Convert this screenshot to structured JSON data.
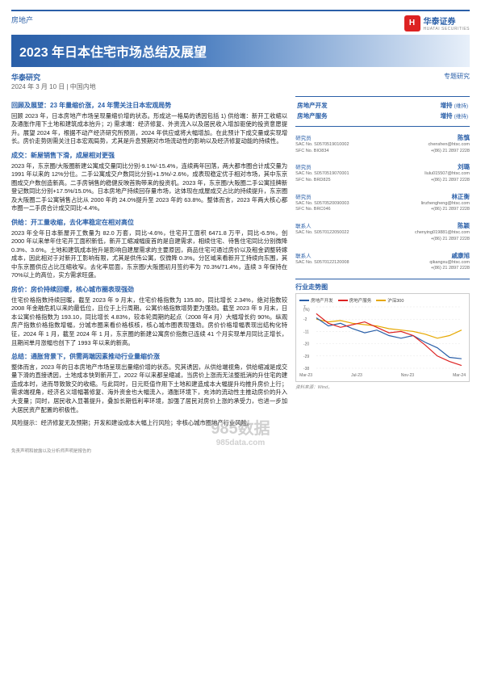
{
  "header": {
    "category": "房地产",
    "brand_cn": "华泰证券",
    "brand_en": "HUATAI SECURITIES",
    "brand_mark": "H",
    "title": "2023 年日本住宅市场总结及展望"
  },
  "meta": {
    "org": "华泰研究",
    "date": "2024 年 3 月 10 日",
    "region": "中国内地",
    "doc_type": "专题研究"
  },
  "ratings": [
    {
      "sector": "房地产开发",
      "rating": "增持",
      "status": "(维持)"
    },
    {
      "sector": "房地产服务",
      "rating": "增持",
      "status": "(维持)"
    }
  ],
  "analysts": [
    {
      "role": "研究员",
      "name": "陈慎",
      "sac": "SAC No. S0570519010002",
      "sfc": "SFC No. BIO834",
      "email": "chenshen@htsc.com",
      "phone": "+(86) 21 2897 2228"
    },
    {
      "role": "研究员",
      "name": "刘璐",
      "sac": "SAC No. S0570519070001",
      "sfc": "SFC No. BRD825",
      "email": "liulu015507@htsc.com",
      "phone": "+(86) 21 2897 2228"
    },
    {
      "role": "研究员",
      "name": "林正衡",
      "sac": "SAC No. S0570520090003",
      "sfc": "SFC No. BRC046",
      "email": "linzhengheng@htsc.com",
      "phone": "+(86) 21 2897 2228"
    },
    {
      "role": "联系人",
      "name": "陈颖",
      "sac": "SAC No. S0570122050022",
      "sfc": "",
      "email": "chenying019881@htsc.com",
      "phone": "+(86) 21 2897 2228"
    },
    {
      "role": "联系人",
      "name": "戚康旭",
      "sac": "SAC No. S0570122120008",
      "sfc": "",
      "email": "qikangxu@htsc.com",
      "phone": "+(86) 21 2897 2228"
    }
  ],
  "sections": [
    {
      "heading": "回顾及展望：23 年量缩价涨，24 年需关注日本宏观局势",
      "body": "回顾 2023 年，日本房地产市场呈现量缩价增的状态。形成这一格局的诱因包括 1) 供给端：新开工收缩以及通胀作用下土地和建筑成本抬升；2) 需求端：经济修复、外资流入以及居民收入增加驱使的投资意愿提升。展望 2024 年，根据不动产经济研究所预测，2024 年供应或将大幅增加。在此预计下成交量或实现增长。房价走势则需关注日本宏观局势，尤其是升息预期对市场流动性的影响以及经济修复动能的持续性。"
    },
    {
      "heading": "成交：新屋销售下滑，成屋相对更强",
      "body": "2023 年，东京圈/大阪圈新建公寓成交量同比分别-9.1%/-15.4%，连续两年回落，两大都市圈合计成交量为 1991 年以来的 12%分位。二手公寓成交户数同比分别+1.5%/-2.6%，成表现稳定优于相对市场，其中东京圈成交户数创造新高。二手房销售的稳健反映首购带来的投资机。2023 年，东京圈/大阪圈二手公寓挂牌新登记数同比分别+17.5%/15.0%。日本房地产持续回存量市场，这体现在成屋成交占比的持续提升，东京圈及大阪圈二手公寓销售占比从 2000 年的 24.0%提升至 2023 年的 63.8%。整体而言，2023 年两大核心都市圈一二手房合计成交同比-4.4%。"
    },
    {
      "heading": "供给：开工量收缩，去化率稳定在相对高位",
      "body": "2023 年全年日本新屋开工数量为 82.0 万套，同比-4.6%，住宅开工面积 6471.8 万平，同比-6.5%，创 2000 年以来单年住宅开工面积新低，新开工缩减幅度首的是自建需求，相续住宅、待售住宅同比分别微降 0.3%、3.6%。土地和建筑成本抬升是影响自建屋需求的主要原因，商品住宅可通过房价以及租金调整转嫁成本，因此相对于对新开工影响有限，尤其是供伟公寓，仅微降 0.3%。分区域来看新开工持续向东围，其中东京圈供应占比压缩收窄。去化率层面，东京圈/大阪圈初月签约率为 70.3%/71.4%，连续 3 年保持在 70%以上的高位，实方需求旺盛。"
    },
    {
      "heading": "房价：房价持续回暖，核心城市圈表现强劲",
      "body": "住宅价格指数持续回暖，截至 2023 年 9 月末，住宅价格指数为 135.80，同比增长 2.34%，绝对指数较 2008 年金融危机以来的最低位，且位于上行周期。公寓价格指数增势更为强劲。截至 2023 年 9 月末，日本公寓价格指数为 193.10，同比增长 4.83%，较本轮周期的起点（2008 年4 月）大幅增长约 90%。纵观房产指数价格指数增幅，分城市圈来看价格核核，核心城市圈表现强劲。房价价格增幅表现出结构化特征，2024 年 1 月，截至 2024 年 1 月，东京圈的新建公寓房价指数已连续 41 个月实现单月同比正增长，且期间单月涨幅也创下了 1993 年以来的新高。"
    },
    {
      "heading": "总结：通胀背景下，供需两端因素推动行业量缩价涨",
      "body": "整体而言，2023 年的日本房地产市场呈现出量缩价增的状态。究其诱因，从供给端视角，供给缩减是成交量下滑的直接诱因，土地成本快到新开工，2022 年以来都呈缩减，当房价上涨而无法整抵消的升住宅的建造成本时，进而导致致交的收缩。与此同时，日元贬值作用下土地和建造成本大幅提升均推升房价上行；需求端视角，经济名义增幅著修复、海外资金也大幅流入，通胀环境下，充沛的流动性主推动房价的升入大变量；同时，居民收入显著提升，叠加长期低利率环境，加强了居民对房价上涨的承受力，也进一步加大居民资产配置的积极性。"
    }
  ],
  "risk": {
    "label": "风险提示：",
    "text": "经济修复无及预期；开发和建设成本大幅上行风险；非核心城市圈地产行业风险。"
  },
  "chart": {
    "title": "行业走势图",
    "legend": [
      {
        "label": "房地产开发",
        "color": "#2a5fa8"
      },
      {
        "label": "房地产服务",
        "color": "#d22"
      },
      {
        "label": "沪深300",
        "color": "#e6a800"
      }
    ],
    "y_axis": {
      "unit": "(%)",
      "ticks": [
        7,
        -2,
        -11,
        -20,
        -29,
        -38
      ]
    },
    "x_axis": [
      "Mar-23",
      "Jul-23",
      "Nov-23",
      "Mar-24"
    ],
    "series": {
      "dev": [
        -1,
        -7,
        -5,
        -9,
        -12,
        -10,
        -14,
        -16,
        -14,
        -19,
        -23,
        -30,
        -31
      ],
      "serv": [
        2,
        -5,
        -8,
        -6,
        -4,
        -8,
        -12,
        -11,
        -14,
        -21,
        -29,
        -33,
        -36
      ],
      "csi300": [
        -2,
        -4,
        -3,
        -5,
        -6,
        -7,
        -9,
        -10,
        -11,
        -13,
        -16,
        -14,
        -10
      ]
    },
    "source": "资料来源：Wind，"
  },
  "watermark": {
    "line1": "985数据",
    "line2": "985data.com"
  },
  "disclaimer": "免责声明和披露以及分析师声明是报告的"
}
